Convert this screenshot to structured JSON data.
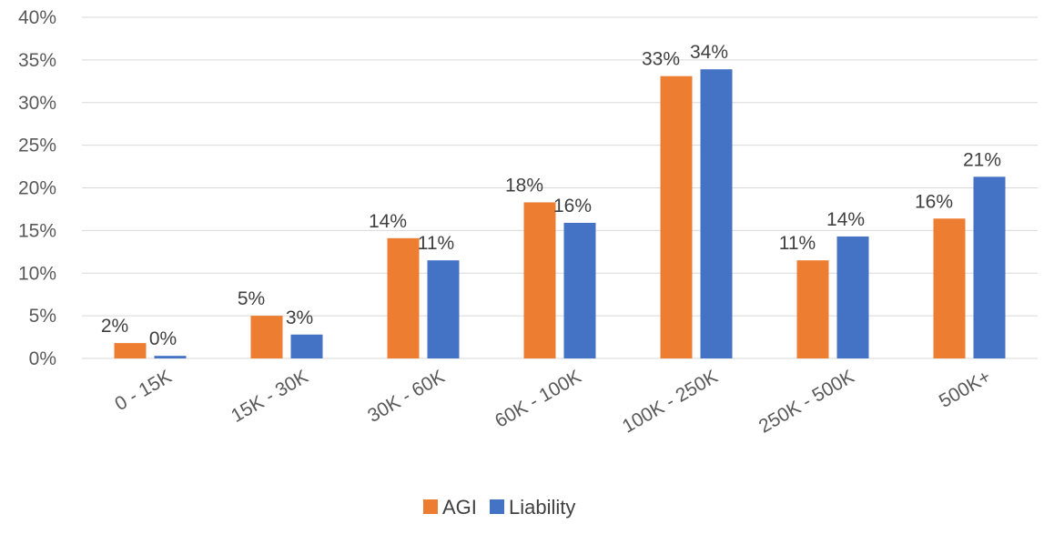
{
  "chart_data": {
    "type": "bar",
    "title": "",
    "xlabel": "",
    "ylabel": "",
    "categories": [
      "0 - 15K",
      "15K - 30K",
      "30K - 60K",
      "60K - 100K",
      "100K - 250K",
      "250K - 500K",
      "500K+"
    ],
    "series": [
      {
        "name": "AGI",
        "color": "#ED7D31",
        "values": [
          1.8,
          5.0,
          14.1,
          18.3,
          33.1,
          11.5,
          16.4
        ],
        "labels": [
          "2%",
          "5%",
          "14%",
          "18%",
          "33%",
          "11%",
          "16%"
        ]
      },
      {
        "name": "Liability",
        "color": "#4472C4",
        "values": [
          0.3,
          2.8,
          11.5,
          15.9,
          33.9,
          14.3,
          21.3
        ],
        "labels": [
          "0%",
          "3%",
          "11%",
          "16%",
          "34%",
          "14%",
          "21%"
        ]
      }
    ],
    "ylim": [
      0,
      40
    ],
    "yticks": [
      0,
      5,
      10,
      15,
      20,
      25,
      30,
      35,
      40
    ],
    "ytick_labels": [
      "0%",
      "5%",
      "10%",
      "15%",
      "20%",
      "25%",
      "30%",
      "35%",
      "40%"
    ],
    "grid": true,
    "legend_position": "bottom"
  }
}
